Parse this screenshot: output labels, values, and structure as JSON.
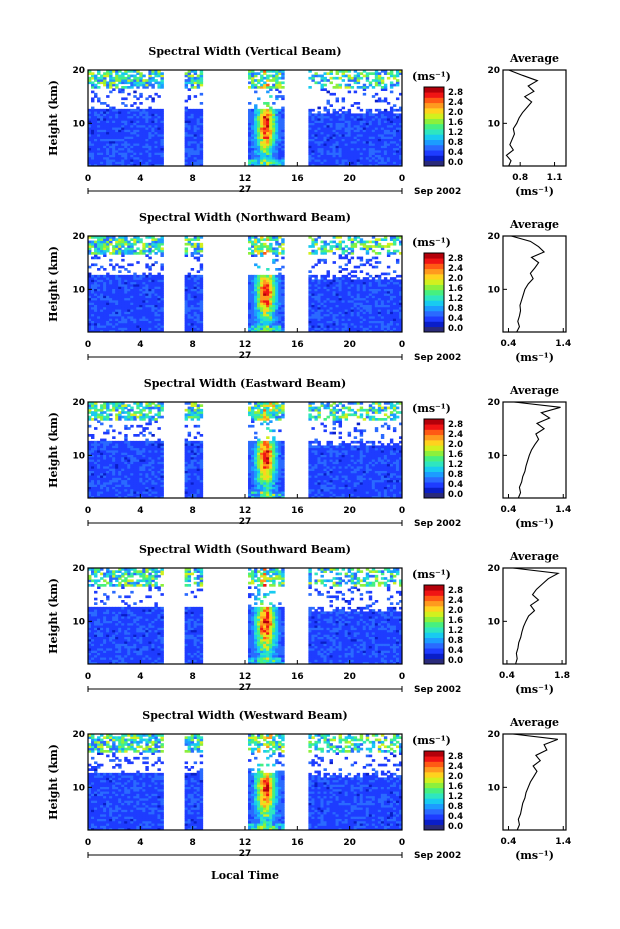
{
  "figure": {
    "xlabel": "Local Time",
    "date_label": "Sep 2002",
    "day_label": "27",
    "height_label": "Height (km)",
    "average_title": "Average",
    "units_label": "(ms⁻¹)",
    "colorscale_colors": [
      "#2a2a7a",
      "#0a1ec8",
      "#1e3cff",
      "#2a6aff",
      "#1c9cff",
      "#18cbf0",
      "#2ee6c0",
      "#46f080",
      "#8cf03c",
      "#d2f01e",
      "#ffd21e",
      "#ff9a1e",
      "#ff5a14",
      "#f01414",
      "#b4000a"
    ]
  },
  "chart_data": [
    {
      "type": "heatmap",
      "title": "Spectral Width (Vertical Beam)",
      "x_ticks": [
        "0",
        "4",
        "8",
        "12",
        "16",
        "20",
        "0"
      ],
      "xlim": [
        0,
        24
      ],
      "y_ticks": [
        "10",
        "20"
      ],
      "ylim": [
        2,
        20
      ],
      "colorbar": {
        "units": "(ms⁻¹)",
        "ticks": [
          "2.8",
          "2.4",
          "2.0",
          "1.6",
          "1.2",
          "0.8",
          "0.4",
          "0.0"
        ],
        "range": [
          0,
          3.0
        ]
      },
      "data_gaps_hours": [
        [
          5.7,
          7.3
        ],
        [
          8.7,
          12.2
        ],
        [
          15.0,
          16.8
        ]
      ],
      "average_profile": {
        "xlabel": "(ms⁻¹)",
        "x_ticks": [
          "0.8",
          "1.1"
        ],
        "xlim": [
          0.65,
          1.2
        ],
        "height_km": [
          2,
          3,
          4,
          5,
          6,
          7,
          8,
          9,
          10,
          11,
          12,
          13,
          14,
          15,
          16,
          17,
          18,
          19,
          20
        ],
        "values": [
          0.7,
          0.72,
          0.68,
          0.74,
          0.71,
          0.73,
          0.75,
          0.74,
          0.77,
          0.79,
          0.82,
          0.86,
          0.9,
          0.84,
          0.92,
          0.87,
          0.95,
          0.82,
          0.7
        ]
      }
    },
    {
      "type": "heatmap",
      "title": "Spectral Width (Northward Beam)",
      "x_ticks": [
        "0",
        "4",
        "8",
        "12",
        "16",
        "20",
        "0"
      ],
      "xlim": [
        0,
        24
      ],
      "y_ticks": [
        "10",
        "20"
      ],
      "ylim": [
        2,
        20
      ],
      "colorbar": {
        "units": "(ms⁻¹)",
        "ticks": [
          "2.8",
          "2.4",
          "2.0",
          "1.6",
          "1.2",
          "0.8",
          "0.4",
          "0.0"
        ],
        "range": [
          0,
          3.0
        ]
      },
      "data_gaps_hours": [
        [
          5.7,
          7.3
        ],
        [
          8.7,
          12.2
        ],
        [
          15.0,
          16.8
        ]
      ],
      "average_profile": {
        "xlabel": "(ms⁻¹)",
        "x_ticks": [
          "0.4",
          "1.4"
        ],
        "xlim": [
          0.3,
          1.45
        ],
        "height_km": [
          2,
          3,
          4,
          5,
          6,
          7,
          8,
          9,
          10,
          11,
          12,
          13,
          14,
          15,
          16,
          17,
          18,
          19,
          20
        ],
        "values": [
          0.55,
          0.6,
          0.57,
          0.6,
          0.62,
          0.61,
          0.64,
          0.67,
          0.7,
          0.76,
          0.85,
          0.8,
          0.88,
          0.95,
          0.82,
          1.05,
          0.95,
          0.8,
          0.45
        ]
      }
    },
    {
      "type": "heatmap",
      "title": "Spectral Width (Eastward Beam)",
      "x_ticks": [
        "0",
        "4",
        "8",
        "12",
        "16",
        "20",
        "0"
      ],
      "xlim": [
        0,
        24
      ],
      "y_ticks": [
        "10",
        "20"
      ],
      "ylim": [
        2,
        20
      ],
      "colorbar": {
        "units": "(ms⁻¹)",
        "ticks": [
          "2.8",
          "2.4",
          "2.0",
          "1.6",
          "1.2",
          "0.8",
          "0.4",
          "0.0"
        ],
        "range": [
          0,
          3.0
        ]
      },
      "data_gaps_hours": [
        [
          5.7,
          7.3
        ],
        [
          8.7,
          12.2
        ],
        [
          15.0,
          16.8
        ]
      ],
      "average_profile": {
        "xlabel": "(ms⁻¹)",
        "x_ticks": [
          "0.4",
          "1.4"
        ],
        "xlim": [
          0.3,
          1.45
        ],
        "height_km": [
          2,
          3,
          4,
          5,
          6,
          7,
          8,
          9,
          10,
          11,
          12,
          13,
          14,
          15,
          16,
          17,
          18,
          19,
          20
        ],
        "values": [
          0.58,
          0.62,
          0.6,
          0.64,
          0.66,
          0.7,
          0.72,
          0.75,
          0.78,
          0.82,
          0.88,
          0.95,
          0.9,
          1.05,
          0.92,
          1.15,
          1.0,
          1.35,
          0.5
        ]
      }
    },
    {
      "type": "heatmap",
      "title": "Spectral Width (Southward Beam)",
      "x_ticks": [
        "0",
        "4",
        "8",
        "12",
        "16",
        "20",
        "0"
      ],
      "xlim": [
        0,
        24
      ],
      "y_ticks": [
        "10",
        "20"
      ],
      "ylim": [
        2,
        20
      ],
      "colorbar": {
        "units": "(ms⁻¹)",
        "ticks": [
          "2.8",
          "2.4",
          "2.0",
          "1.6",
          "1.2",
          "0.8",
          "0.4",
          "0.0"
        ],
        "range": [
          0,
          3.0
        ]
      },
      "data_gaps_hours": [
        [
          5.7,
          7.3
        ],
        [
          8.7,
          12.2
        ],
        [
          15.0,
          16.8
        ]
      ],
      "average_profile": {
        "xlabel": "(ms⁻¹)",
        "x_ticks": [
          "0.4",
          "1.8"
        ],
        "xlim": [
          0.3,
          1.9
        ],
        "height_km": [
          2,
          3,
          4,
          5,
          6,
          7,
          8,
          9,
          10,
          11,
          12,
          13,
          14,
          15,
          16,
          17,
          18,
          19,
          20
        ],
        "values": [
          0.62,
          0.66,
          0.64,
          0.68,
          0.7,
          0.75,
          0.78,
          0.82,
          0.88,
          0.95,
          1.1,
          1.0,
          1.2,
          1.05,
          1.15,
          1.3,
          1.45,
          1.7,
          0.55
        ]
      }
    },
    {
      "type": "heatmap",
      "title": "Spectral Width (Westward Beam)",
      "x_ticks": [
        "0",
        "4",
        "8",
        "12",
        "16",
        "20",
        "0"
      ],
      "xlim": [
        0,
        24
      ],
      "y_ticks": [
        "10",
        "20"
      ],
      "ylim": [
        2,
        20
      ],
      "colorbar": {
        "units": "(ms⁻¹)",
        "ticks": [
          "2.8",
          "2.4",
          "2.0",
          "1.6",
          "1.2",
          "0.8",
          "0.4",
          "0.0"
        ],
        "range": [
          0,
          3.0
        ]
      },
      "data_gaps_hours": [
        [
          5.7,
          7.3
        ],
        [
          8.7,
          12.2
        ],
        [
          15.0,
          16.8
        ]
      ],
      "average_profile": {
        "xlabel": "(ms⁻¹)",
        "x_ticks": [
          "0.4",
          "1.4"
        ],
        "xlim": [
          0.3,
          1.45
        ],
        "height_km": [
          2,
          3,
          4,
          5,
          6,
          7,
          8,
          9,
          10,
          11,
          12,
          13,
          14,
          15,
          16,
          17,
          18,
          19,
          20
        ],
        "values": [
          0.56,
          0.6,
          0.58,
          0.62,
          0.64,
          0.66,
          0.7,
          0.72,
          0.76,
          0.8,
          0.86,
          0.92,
          0.85,
          0.98,
          0.9,
          1.1,
          1.05,
          1.3,
          0.48
        ]
      }
    }
  ]
}
